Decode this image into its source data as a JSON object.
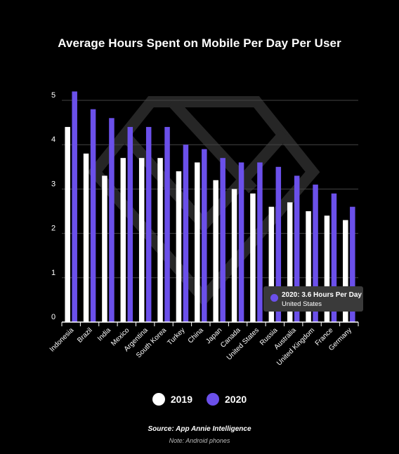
{
  "chart_data": {
    "type": "bar",
    "title": "Average Hours Spent on Mobile Per Day Per User",
    "xlabel": "",
    "ylabel": "",
    "ylim": [
      0,
      5
    ],
    "yticks": [
      "0",
      "1",
      "2",
      "3",
      "4",
      "5"
    ],
    "grid": true,
    "legend_position": "bottom",
    "categories": [
      "Indonesia",
      "Brazil",
      "India",
      "Mexico",
      "Argentina",
      "South Korea",
      "Turkey",
      "China",
      "Japan",
      "Canada",
      "United States",
      "Russia",
      "Australia",
      "United Kingdom",
      "France",
      "Germany"
    ],
    "series": [
      {
        "name": "2019",
        "color": "#ffffff",
        "values": [
          4.4,
          3.8,
          3.3,
          3.7,
          3.7,
          3.7,
          3.4,
          3.6,
          3.2,
          3.0,
          2.9,
          2.6,
          2.7,
          2.5,
          2.4,
          2.3
        ]
      },
      {
        "name": "2020",
        "color": "#6b50ea",
        "values": [
          5.2,
          4.8,
          4.6,
          4.4,
          4.4,
          4.4,
          4.0,
          3.9,
          3.7,
          3.6,
          3.6,
          3.5,
          3.3,
          3.1,
          2.9,
          2.6
        ]
      }
    ],
    "tooltip": {
      "title": "2020: 3.6 Hours Per Day",
      "subtitle": "United States"
    }
  },
  "source": "Source: App Annie Intelligence",
  "note": "Note: Android phones",
  "colors": {
    "background": "#000000",
    "grid": "#444444",
    "watermark": "#2a2a2a",
    "tooltip_bg": "#3a3a3a"
  }
}
